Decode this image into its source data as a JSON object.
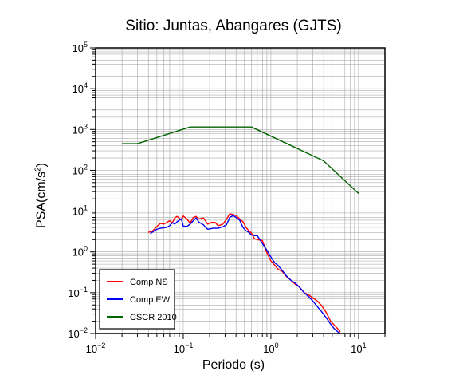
{
  "chart_data": {
    "type": "line",
    "title": "Sitio: Juntas, Abangares (GJTS)",
    "xlabel": "Periodo (s)",
    "ylabel": {
      "base": "PSA(cm/s",
      "sup": "2",
      "close": ")"
    },
    "xscale": "log",
    "yscale": "log",
    "xlim": [
      0.01,
      20
    ],
    "ylim": [
      0.01,
      100000
    ],
    "grid": true,
    "legend_position": "bottom-left",
    "x_ticks": [
      {
        "value": 0.01,
        "base": "10",
        "exp": "−2"
      },
      {
        "value": 0.1,
        "base": "10",
        "exp": "−1"
      },
      {
        "value": 1,
        "base": "10",
        "exp": "0"
      },
      {
        "value": 10,
        "base": "10",
        "exp": "1"
      }
    ],
    "y_ticks": [
      {
        "value": 0.01,
        "base": "10",
        "exp": "−2"
      },
      {
        "value": 0.1,
        "base": "10",
        "exp": "−1"
      },
      {
        "value": 1,
        "base": "10",
        "exp": "0"
      },
      {
        "value": 10,
        "base": "10",
        "exp": "1"
      },
      {
        "value": 100,
        "base": "10",
        "exp": "2"
      },
      {
        "value": 1000,
        "base": "10",
        "exp": "3"
      },
      {
        "value": 10000,
        "base": "10",
        "exp": "4"
      },
      {
        "value": 100000,
        "base": "10",
        "exp": "5"
      }
    ],
    "series": [
      {
        "name": "Comp NS",
        "color": "#ff0000",
        "points": [
          [
            0.04,
            3.0
          ],
          [
            0.045,
            3.3
          ],
          [
            0.05,
            4.2
          ],
          [
            0.055,
            5.0
          ],
          [
            0.06,
            4.8
          ],
          [
            0.065,
            5.3
          ],
          [
            0.07,
            5.8
          ],
          [
            0.075,
            5.2
          ],
          [
            0.08,
            6.8
          ],
          [
            0.085,
            7.4
          ],
          [
            0.09,
            6.7
          ],
          [
            0.095,
            6.0
          ],
          [
            0.1,
            7.6
          ],
          [
            0.11,
            6.4
          ],
          [
            0.12,
            5.0
          ],
          [
            0.13,
            7.0
          ],
          [
            0.14,
            7.4
          ],
          [
            0.15,
            6.4
          ],
          [
            0.17,
            6.8
          ],
          [
            0.19,
            4.8
          ],
          [
            0.21,
            5.3
          ],
          [
            0.23,
            5.3
          ],
          [
            0.25,
            4.4
          ],
          [
            0.28,
            4.7
          ],
          [
            0.31,
            6.2
          ],
          [
            0.34,
            8.6
          ],
          [
            0.37,
            8.2
          ],
          [
            0.4,
            7.8
          ],
          [
            0.44,
            6.4
          ],
          [
            0.48,
            5.5
          ],
          [
            0.52,
            4.0
          ],
          [
            0.56,
            3.3
          ],
          [
            0.6,
            2.9
          ],
          [
            0.65,
            2.1
          ],
          [
            0.7,
            2.0
          ],
          [
            0.8,
            1.9
          ],
          [
            0.9,
            0.95
          ],
          [
            1.0,
            0.6
          ],
          [
            1.1,
            0.48
          ],
          [
            1.2,
            0.38
          ],
          [
            1.35,
            0.33
          ],
          [
            1.5,
            0.25
          ],
          [
            1.7,
            0.2
          ],
          [
            1.9,
            0.16
          ],
          [
            2.1,
            0.14
          ],
          [
            2.4,
            0.1
          ],
          [
            2.7,
            0.088
          ],
          [
            3.0,
            0.075
          ],
          [
            3.4,
            0.062
          ],
          [
            3.8,
            0.048
          ],
          [
            4.3,
            0.032
          ],
          [
            4.8,
            0.02
          ],
          [
            5.3,
            0.016
          ],
          [
            5.8,
            0.013
          ],
          [
            6.2,
            0.011
          ]
        ]
      },
      {
        "name": "Comp EW",
        "color": "#0000ff",
        "points": [
          [
            0.042,
            2.8
          ],
          [
            0.046,
            3.2
          ],
          [
            0.05,
            3.6
          ],
          [
            0.055,
            3.8
          ],
          [
            0.06,
            3.9
          ],
          [
            0.065,
            4.0
          ],
          [
            0.07,
            4.4
          ],
          [
            0.075,
            5.2
          ],
          [
            0.08,
            4.8
          ],
          [
            0.085,
            5.5
          ],
          [
            0.09,
            6.0
          ],
          [
            0.095,
            6.5
          ],
          [
            0.1,
            4.3
          ],
          [
            0.11,
            4.2
          ],
          [
            0.12,
            4.8
          ],
          [
            0.13,
            5.8
          ],
          [
            0.14,
            6.8
          ],
          [
            0.15,
            5.4
          ],
          [
            0.17,
            4.6
          ],
          [
            0.19,
            3.6
          ],
          [
            0.22,
            3.8
          ],
          [
            0.25,
            3.8
          ],
          [
            0.28,
            4.1
          ],
          [
            0.31,
            4.6
          ],
          [
            0.34,
            7.0
          ],
          [
            0.37,
            7.8
          ],
          [
            0.4,
            7.0
          ],
          [
            0.44,
            6.0
          ],
          [
            0.48,
            4.0
          ],
          [
            0.52,
            3.3
          ],
          [
            0.56,
            3.0
          ],
          [
            0.6,
            2.6
          ],
          [
            0.65,
            2.5
          ],
          [
            0.7,
            2.5
          ],
          [
            0.8,
            1.6
          ],
          [
            0.9,
            1.1
          ],
          [
            1.0,
            0.75
          ],
          [
            1.1,
            0.55
          ],
          [
            1.2,
            0.47
          ],
          [
            1.35,
            0.35
          ],
          [
            1.5,
            0.26
          ],
          [
            1.7,
            0.2
          ],
          [
            1.9,
            0.17
          ],
          [
            2.1,
            0.14
          ],
          [
            2.4,
            0.1
          ],
          [
            2.7,
            0.08
          ],
          [
            3.0,
            0.063
          ],
          [
            3.4,
            0.045
          ],
          [
            3.8,
            0.034
          ],
          [
            4.3,
            0.024
          ],
          [
            4.8,
            0.017
          ],
          [
            5.3,
            0.013
          ],
          [
            5.8,
            0.011
          ],
          [
            6.2,
            0.01
          ]
        ]
      },
      {
        "name": "CSCR 2010",
        "color": "#006400",
        "points": [
          [
            0.02,
            450
          ],
          [
            0.03,
            450
          ],
          [
            0.12,
            1150
          ],
          [
            0.6,
            1150
          ],
          [
            4.0,
            170
          ],
          [
            10.0,
            27
          ]
        ]
      }
    ]
  }
}
